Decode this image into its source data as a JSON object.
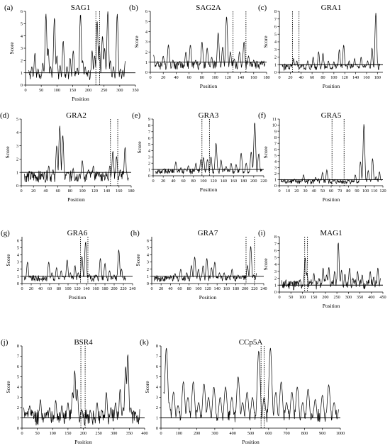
{
  "figure": {
    "y_label": "Score",
    "x_label": "Position"
  },
  "chart_data": [
    {
      "panel": "(a)",
      "title": "SAG1",
      "type": "line",
      "xlim": [
        0,
        350
      ],
      "xticks": [
        0,
        50,
        100,
        150,
        200,
        250,
        300,
        350
      ],
      "ylim": [
        0,
        6
      ],
      "yticks": [
        0,
        1,
        2,
        3,
        4,
        5,
        6
      ],
      "threshold": 1,
      "epitope_lines": [
        224,
        236
      ],
      "peaks": [
        [
          10,
          1.2
        ],
        [
          20,
          1.5
        ],
        [
          30,
          2.6
        ],
        [
          40,
          1.3
        ],
        [
          55,
          1.8
        ],
        [
          65,
          5.8
        ],
        [
          72,
          3.0
        ],
        [
          80,
          1.5
        ],
        [
          92,
          5.5
        ],
        [
          100,
          2.4
        ],
        [
          110,
          1.6
        ],
        [
          120,
          3.6
        ],
        [
          132,
          1.5
        ],
        [
          142,
          2.2
        ],
        [
          152,
          2.8
        ],
        [
          165,
          1.4
        ],
        [
          175,
          5.8
        ],
        [
          182,
          2.0
        ],
        [
          190,
          1.5
        ],
        [
          200,
          1.2
        ],
        [
          212,
          2.8
        ],
        [
          220,
          2.4
        ],
        [
          228,
          5.2
        ],
        [
          235,
          3.2
        ],
        [
          245,
          4.0
        ],
        [
          252,
          3.0
        ],
        [
          262,
          6.0
        ],
        [
          270,
          2.0
        ],
        [
          280,
          1.5
        ],
        [
          292,
          5.8
        ],
        [
          302,
          1.3
        ],
        [
          310,
          1.2
        ],
        [
          318,
          2.0
        ]
      ]
    },
    {
      "panel": "(b)",
      "title": "SAG2A",
      "type": "line",
      "xlim": [
        0,
        180
      ],
      "xticks": [
        0,
        20,
        40,
        60,
        80,
        100,
        120,
        140,
        160,
        180
      ],
      "ylim": [
        0,
        6
      ],
      "yticks": [
        0,
        1,
        2,
        3,
        4,
        5,
        6
      ],
      "threshold": 1,
      "epitope_lines": [
        128,
        148
      ],
      "peaks": [
        [
          5,
          1.7
        ],
        [
          10,
          0.9
        ],
        [
          20,
          1.6
        ],
        [
          28,
          2.7
        ],
        [
          35,
          1.2
        ],
        [
          45,
          1.0
        ],
        [
          55,
          2.0
        ],
        [
          62,
          2.7
        ],
        [
          70,
          1.2
        ],
        [
          80,
          3.0
        ],
        [
          88,
          2.4
        ],
        [
          95,
          1.5
        ],
        [
          105,
          3.9
        ],
        [
          112,
          2.5
        ],
        [
          118,
          5.5
        ],
        [
          124,
          2.0
        ],
        [
          130,
          1.3
        ],
        [
          138,
          2.0
        ],
        [
          145,
          3.0
        ],
        [
          152,
          1.6
        ],
        [
          160,
          1.2
        ],
        [
          172,
          1.0
        ],
        [
          178,
          0.8
        ]
      ]
    },
    {
      "panel": "(c)",
      "title": "GRA1",
      "type": "line",
      "xlim": [
        0,
        190
      ],
      "xticks": [
        0,
        20,
        40,
        60,
        80,
        100,
        120,
        140,
        160,
        180
      ],
      "ylim": [
        0,
        8
      ],
      "yticks": [
        0,
        1,
        2,
        3,
        4,
        5,
        6,
        7,
        8
      ],
      "threshold": 1,
      "epitope_lines": [
        24,
        36
      ],
      "peaks": [
        [
          5,
          0.5
        ],
        [
          15,
          0.8
        ],
        [
          26,
          1.8
        ],
        [
          32,
          1.5
        ],
        [
          42,
          1.0
        ],
        [
          52,
          1.5
        ],
        [
          62,
          2.0
        ],
        [
          72,
          2.7
        ],
        [
          80,
          2.5
        ],
        [
          90,
          1.5
        ],
        [
          100,
          1.4
        ],
        [
          110,
          3.0
        ],
        [
          118,
          3.6
        ],
        [
          128,
          1.5
        ],
        [
          138,
          1.8
        ],
        [
          150,
          2.0
        ],
        [
          162,
          1.5
        ],
        [
          170,
          3.2
        ],
        [
          177,
          7.8
        ],
        [
          185,
          1.2
        ]
      ]
    },
    {
      "panel": "(d)",
      "title": "GRA2",
      "type": "line",
      "xlim": [
        0,
        180
      ],
      "xticks": [
        0,
        20,
        40,
        60,
        80,
        100,
        120,
        140,
        160,
        180
      ],
      "ylim": [
        0,
        5
      ],
      "yticks": [
        0,
        1,
        2,
        3,
        4,
        5
      ],
      "threshold": 1,
      "epitope_lines": [
        146,
        158
      ],
      "peaks": [
        [
          5,
          0.3
        ],
        [
          20,
          0.4
        ],
        [
          35,
          0.8
        ],
        [
          45,
          1.5
        ],
        [
          52,
          1.2
        ],
        [
          58,
          3.0
        ],
        [
          63,
          4.5
        ],
        [
          68,
          3.8
        ],
        [
          75,
          1.0
        ],
        [
          85,
          1.3
        ],
        [
          95,
          0.9
        ],
        [
          100,
          1.9
        ],
        [
          110,
          1.2
        ],
        [
          118,
          1.5
        ],
        [
          125,
          1.0
        ],
        [
          135,
          0.7
        ],
        [
          145,
          1.5
        ],
        [
          150,
          2.6
        ],
        [
          156,
          2.2
        ],
        [
          162,
          1.2
        ],
        [
          170,
          2.9
        ],
        [
          176,
          0.6
        ]
      ]
    },
    {
      "panel": "(e)",
      "title": "GRA3",
      "type": "line",
      "xlim": [
        0,
        220
      ],
      "xticks": [
        0,
        20,
        40,
        60,
        80,
        100,
        120,
        140,
        160,
        180,
        200,
        220
      ],
      "ylim": [
        0,
        9
      ],
      "yticks": [
        0,
        1,
        2,
        3,
        4,
        5,
        6,
        7,
        8,
        9
      ],
      "threshold": 1,
      "epitope_lines": [
        97,
        112
      ],
      "peaks": [
        [
          5,
          0.4
        ],
        [
          20,
          1.0
        ],
        [
          35,
          0.9
        ],
        [
          45,
          2.2
        ],
        [
          55,
          1.3
        ],
        [
          70,
          1.6
        ],
        [
          85,
          2.0
        ],
        [
          95,
          2.6
        ],
        [
          100,
          2.9
        ],
        [
          108,
          2.6
        ],
        [
          115,
          3.0
        ],
        [
          125,
          5.2
        ],
        [
          135,
          2.5
        ],
        [
          145,
          1.5
        ],
        [
          155,
          2.0
        ],
        [
          165,
          1.8
        ],
        [
          175,
          3.6
        ],
        [
          185,
          2.0
        ],
        [
          195,
          3.8
        ],
        [
          202,
          8.5
        ],
        [
          210,
          3.5
        ],
        [
          218,
          1.0
        ]
      ]
    },
    {
      "panel": "(f)",
      "title": "GRA5",
      "type": "line",
      "xlim": [
        0,
        120
      ],
      "xticks": [
        0,
        10,
        20,
        30,
        40,
        50,
        60,
        70,
        80,
        90,
        100,
        110,
        120
      ],
      "ylim": [
        0,
        11
      ],
      "yticks": [
        0,
        1,
        2,
        3,
        4,
        5,
        6,
        7,
        8,
        9,
        10,
        11
      ],
      "threshold": 1,
      "epitope_lines": [
        61,
        75
      ],
      "peaks": [
        [
          2,
          0.1
        ],
        [
          10,
          0.8
        ],
        [
          20,
          0.6
        ],
        [
          28,
          1.8
        ],
        [
          35,
          1.0
        ],
        [
          42,
          1.4
        ],
        [
          50,
          2.2
        ],
        [
          55,
          2.6
        ],
        [
          62,
          1.0
        ],
        [
          70,
          0.6
        ],
        [
          80,
          0.9
        ],
        [
          88,
          1.8
        ],
        [
          94,
          4.0
        ],
        [
          98,
          10.2
        ],
        [
          103,
          2.5
        ],
        [
          108,
          4.5
        ],
        [
          112,
          1.5
        ],
        [
          116,
          2.3
        ],
        [
          120,
          1.0
        ]
      ]
    },
    {
      "panel": "(g)",
      "title": "GRA6",
      "type": "line",
      "xlim": [
        0,
        240
      ],
      "xticks": [
        0,
        20,
        40,
        60,
        80,
        100,
        120,
        140,
        160,
        180,
        200,
        220,
        240
      ],
      "ylim": [
        0,
        6.5
      ],
      "yticks": [
        0,
        1,
        2,
        3,
        4,
        5,
        6
      ],
      "threshold": 1,
      "epitope_lines": [
        127,
        143
      ],
      "peaks": [
        [
          5,
          0.4
        ],
        [
          12,
          3.0
        ],
        [
          20,
          0.5
        ],
        [
          40,
          0.2
        ],
        [
          58,
          3.0
        ],
        [
          65,
          1.5
        ],
        [
          75,
          2.2
        ],
        [
          85,
          1.8
        ],
        [
          98,
          3.3
        ],
        [
          105,
          1.5
        ],
        [
          115,
          2.5
        ],
        [
          122,
          1.5
        ],
        [
          130,
          3.8
        ],
        [
          138,
          5.8
        ],
        [
          146,
          1.3
        ],
        [
          160,
          1.2
        ],
        [
          170,
          3.5
        ],
        [
          180,
          2.8
        ],
        [
          190,
          1.8
        ],
        [
          200,
          1.2
        ],
        [
          210,
          4.7
        ],
        [
          216,
          2.0
        ],
        [
          225,
          0.5
        ]
      ]
    },
    {
      "panel": "(h)",
      "title": "GRA7",
      "type": "line",
      "xlim": [
        0,
        240
      ],
      "xticks": [
        0,
        20,
        40,
        60,
        80,
        100,
        120,
        140,
        160,
        180,
        200,
        220,
        240
      ],
      "ylim": [
        0,
        6.5
      ],
      "yticks": [
        0,
        1,
        2,
        3,
        4,
        5,
        6
      ],
      "threshold": 1,
      "epitope_lines": [
        202,
        220
      ],
      "peaks": [
        [
          5,
          0.2
        ],
        [
          20,
          0.3
        ],
        [
          35,
          0.9
        ],
        [
          50,
          1.4
        ],
        [
          62,
          2.0
        ],
        [
          75,
          1.5
        ],
        [
          85,
          2.5
        ],
        [
          92,
          3.7
        ],
        [
          100,
          2.0
        ],
        [
          110,
          2.5
        ],
        [
          118,
          3.5
        ],
        [
          128,
          2.2
        ],
        [
          135,
          3.0
        ],
        [
          145,
          1.5
        ],
        [
          155,
          1.5
        ],
        [
          165,
          1.0
        ],
        [
          172,
          2.0
        ],
        [
          185,
          1.2
        ],
        [
          195,
          1.0
        ],
        [
          205,
          2.5
        ],
        [
          212,
          5.2
        ],
        [
          218,
          1.2
        ],
        [
          225,
          1.5
        ]
      ]
    },
    {
      "panel": "(i)",
      "title": "MAG1",
      "type": "line",
      "xlim": [
        0,
        450
      ],
      "xticks": [
        0,
        50,
        100,
        150,
        200,
        250,
        300,
        350,
        400,
        450
      ],
      "ylim": [
        0,
        8
      ],
      "yticks": [
        0,
        1,
        2,
        3,
        4,
        5,
        6,
        7,
        8
      ],
      "threshold": 1,
      "epitope_lines": [
        110,
        122
      ],
      "peaks": [
        [
          10,
          1.3
        ],
        [
          30,
          0.9
        ],
        [
          50,
          1.6
        ],
        [
          72,
          1.2
        ],
        [
          90,
          1.8
        ],
        [
          105,
          1.5
        ],
        [
          112,
          5.0
        ],
        [
          120,
          2.8
        ],
        [
          135,
          1.5
        ],
        [
          150,
          2.7
        ],
        [
          172,
          2.0
        ],
        [
          190,
          3.5
        ],
        [
          205,
          2.5
        ],
        [
          215,
          3.6
        ],
        [
          228,
          1.5
        ],
        [
          240,
          3.0
        ],
        [
          256,
          7.2
        ],
        [
          270,
          3.2
        ],
        [
          285,
          2.6
        ],
        [
          305,
          3.5
        ],
        [
          320,
          2.0
        ],
        [
          340,
          3.0
        ],
        [
          360,
          2.5
        ],
        [
          380,
          1.6
        ],
        [
          395,
          3.0
        ],
        [
          410,
          2.2
        ],
        [
          428,
          3.5
        ],
        [
          440,
          2.0
        ]
      ]
    },
    {
      "panel": "(j)",
      "title": "BSR4",
      "type": "line",
      "xlim": [
        0,
        400
      ],
      "xticks": [
        0,
        50,
        100,
        150,
        200,
        250,
        300,
        350,
        400
      ],
      "ylim": [
        0,
        8
      ],
      "yticks": [
        0,
        1,
        2,
        3,
        4,
        5,
        6,
        7,
        8
      ],
      "threshold": 1,
      "epitope_lines": [
        192,
        206
      ],
      "peaks": [
        [
          5,
          2.0
        ],
        [
          15,
          1.5
        ],
        [
          25,
          2.2
        ],
        [
          40,
          1.0
        ],
        [
          60,
          2.8
        ],
        [
          75,
          1.5
        ],
        [
          90,
          2.0
        ],
        [
          110,
          2.7
        ],
        [
          130,
          2.2
        ],
        [
          150,
          2.5
        ],
        [
          165,
          3.5
        ],
        [
          172,
          5.6
        ],
        [
          180,
          3.8
        ],
        [
          195,
          1.8
        ],
        [
          210,
          1.0
        ],
        [
          225,
          1.5
        ],
        [
          245,
          2.5
        ],
        [
          260,
          1.8
        ],
        [
          275,
          3.5
        ],
        [
          290,
          2.0
        ],
        [
          305,
          2.5
        ],
        [
          320,
          3.8
        ],
        [
          330,
          2.0
        ],
        [
          338,
          6.0
        ],
        [
          345,
          7.2
        ],
        [
          355,
          2.0
        ],
        [
          370,
          1.5
        ],
        [
          385,
          1.0
        ]
      ]
    },
    {
      "panel": "(k)",
      "title": "CCp5A",
      "type": "line",
      "xlim": [
        0,
        1000
      ],
      "xticks": [
        0,
        100,
        200,
        300,
        400,
        500,
        600,
        700,
        800,
        900,
        1000
      ],
      "ylim": [
        0,
        8
      ],
      "yticks": [
        0,
        1,
        2,
        3,
        4,
        5,
        6,
        7,
        8
      ],
      "threshold": 1,
      "epitope_lines": [
        558,
        575
      ],
      "peaks": [
        [
          15,
          3.5
        ],
        [
          30,
          7.8
        ],
        [
          45,
          2.5
        ],
        [
          70,
          3.5
        ],
        [
          95,
          2.2
        ],
        [
          125,
          4.5
        ],
        [
          150,
          3.0
        ],
        [
          180,
          4.5
        ],
        [
          210,
          2.5
        ],
        [
          240,
          4.3
        ],
        [
          265,
          3.0
        ],
        [
          295,
          4.0
        ],
        [
          330,
          3.0
        ],
        [
          360,
          4.0
        ],
        [
          395,
          3.0
        ],
        [
          430,
          5.0
        ],
        [
          455,
          2.5
        ],
        [
          480,
          3.5
        ],
        [
          510,
          3.0
        ],
        [
          545,
          7.5
        ],
        [
          575,
          3.0
        ],
        [
          610,
          7.8
        ],
        [
          640,
          3.5
        ],
        [
          670,
          4.5
        ],
        [
          700,
          2.5
        ],
        [
          730,
          3.5
        ],
        [
          760,
          4.0
        ],
        [
          790,
          2.5
        ],
        [
          820,
          3.8
        ],
        [
          860,
          2.8
        ],
        [
          900,
          3.2
        ],
        [
          935,
          4.2
        ],
        [
          965,
          2.5
        ],
        [
          990,
          1.5
        ]
      ]
    }
  ]
}
